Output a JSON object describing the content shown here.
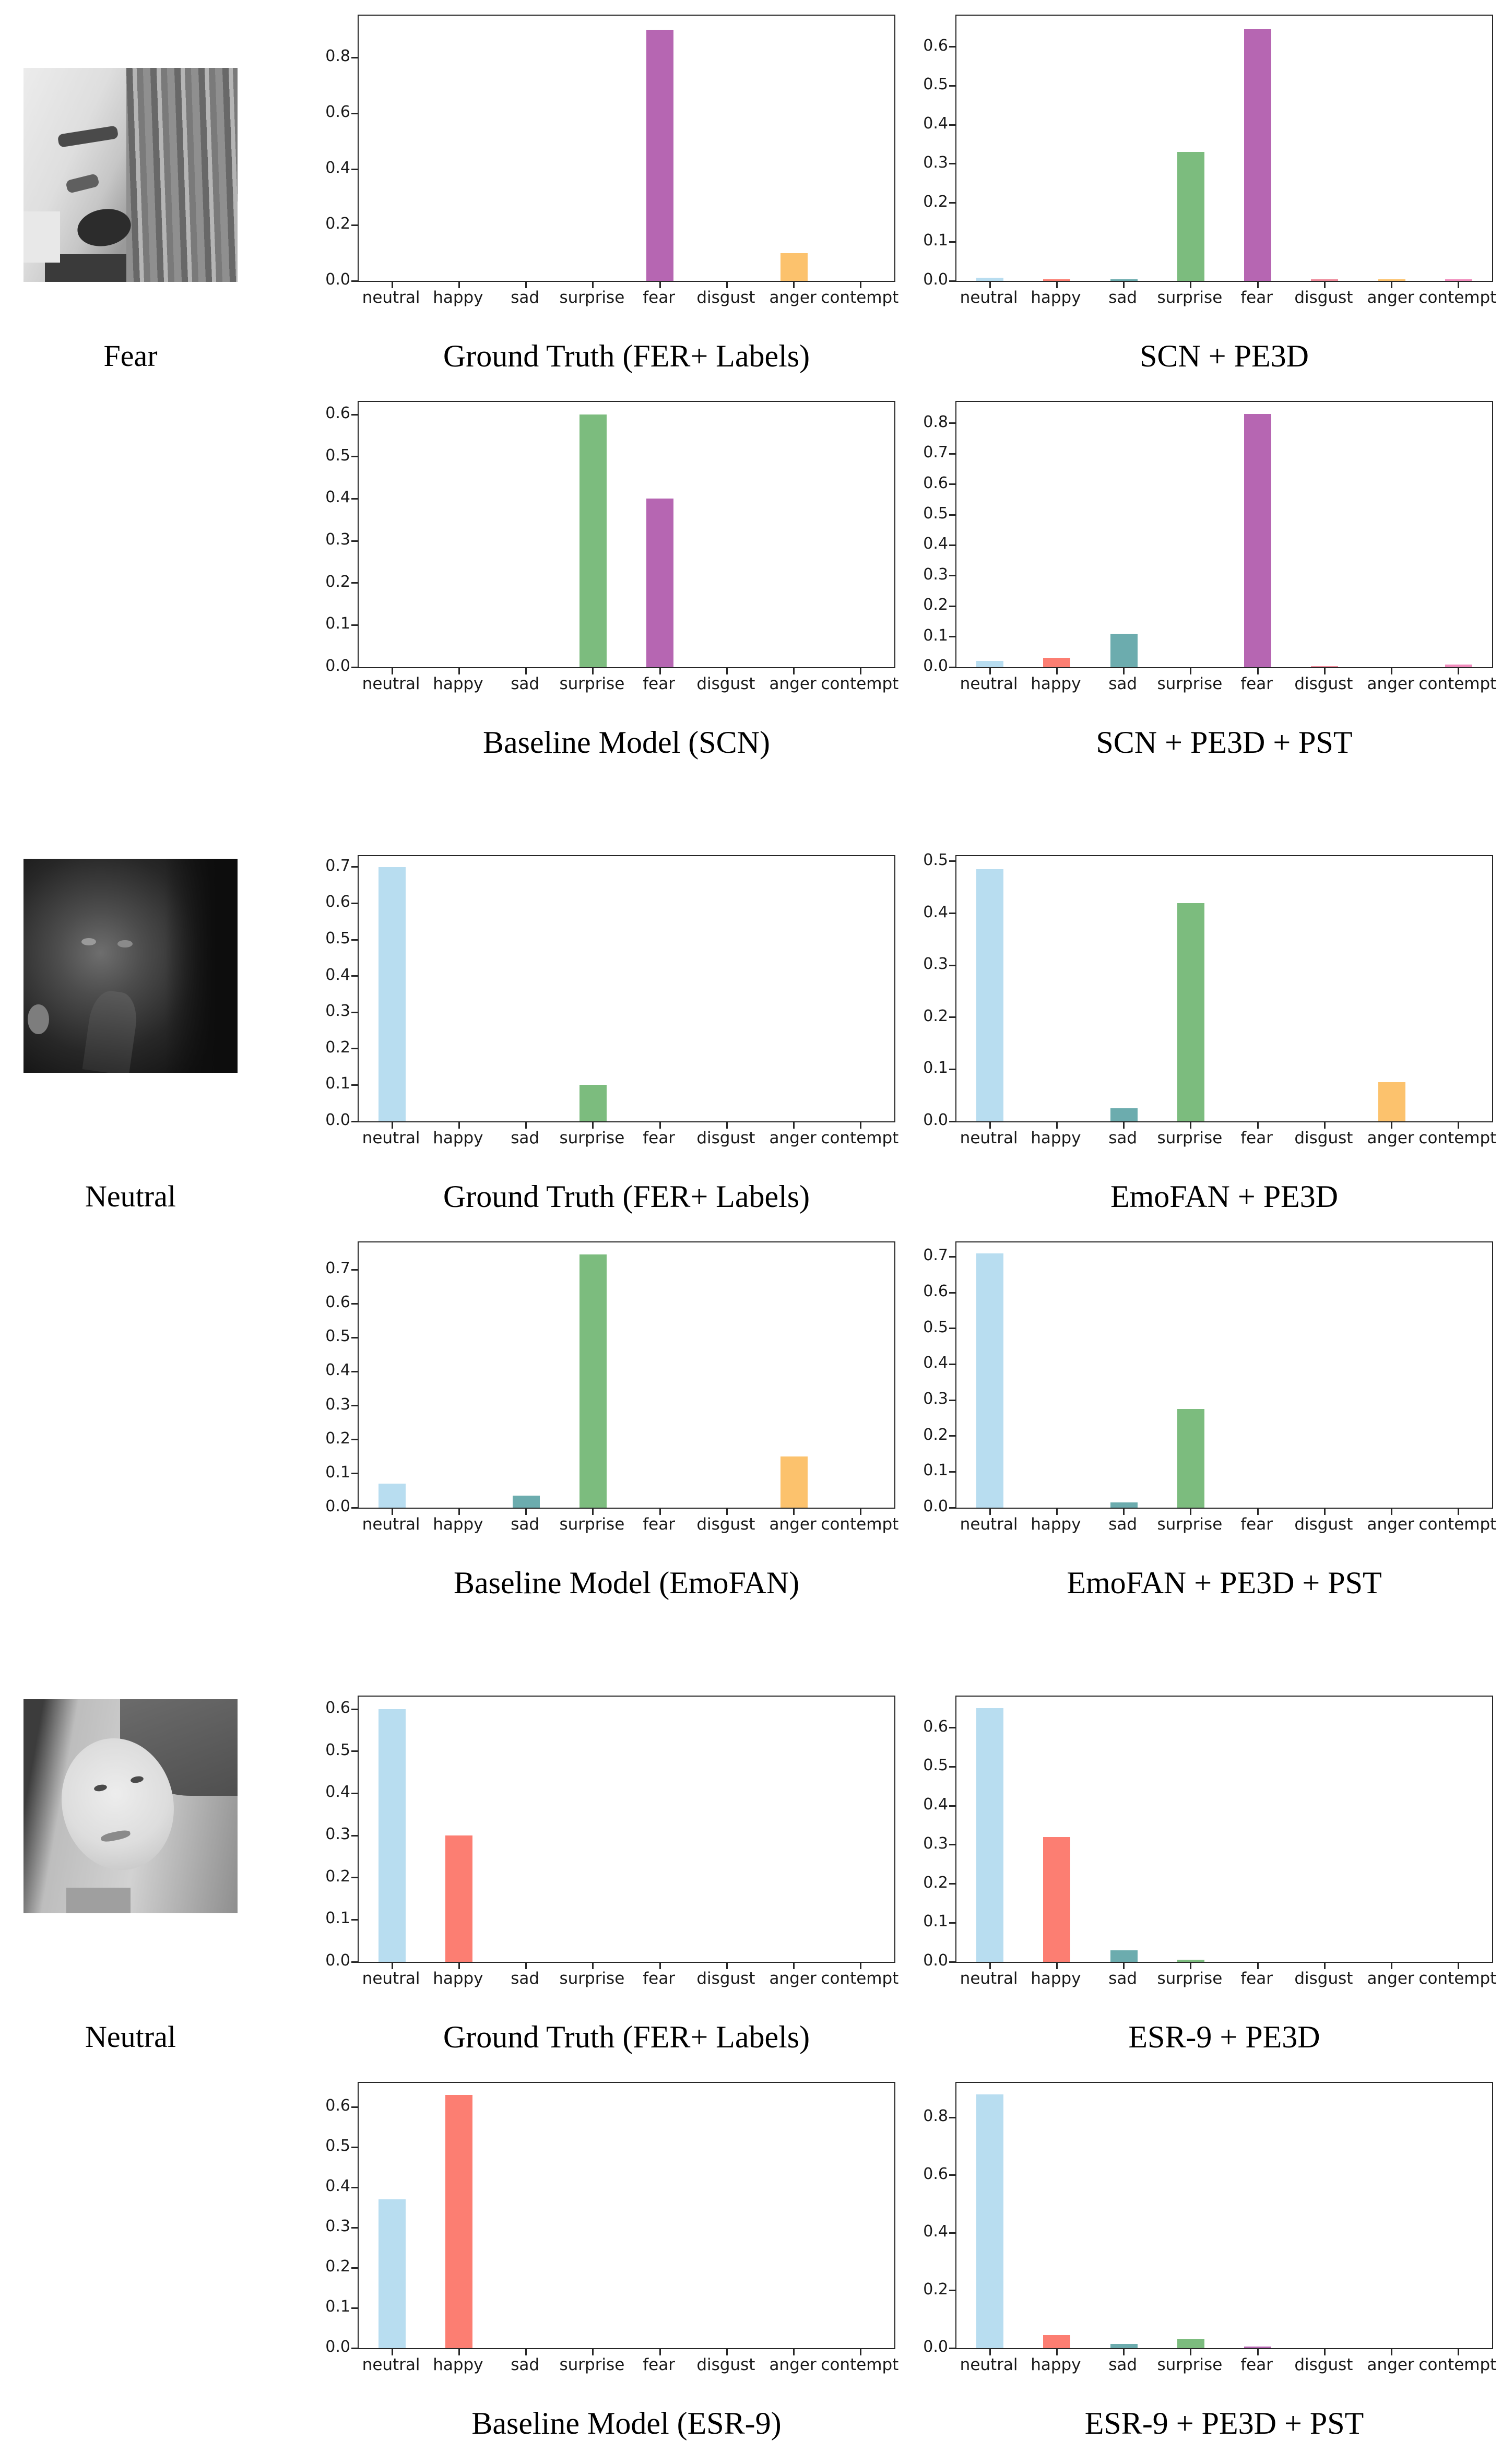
{
  "chart_data": {
    "type": "bar",
    "categories": [
      "neutral",
      "happy",
      "sad",
      "surprise",
      "fear",
      "disgust",
      "anger",
      "contempt"
    ],
    "bar_colors": {
      "neutral": "#b8ddf0",
      "happy": "#fc7e72",
      "sad": "#6cacae",
      "surprise": "#7cbc7e",
      "fear": "#b666b2",
      "disgust": "#ee8a9a",
      "anger": "#fcc26d",
      "contempt": "#f18cbd"
    },
    "grid": false,
    "legend": "none",
    "xlabel": "",
    "ylabel": "",
    "groups": [
      {
        "face_label": "Fear",
        "charts": [
          {
            "title": "Ground Truth (FER+ Labels)",
            "yticks": [
              0.0,
              0.2,
              0.4,
              0.6,
              0.8
            ],
            "ylim": [
              0,
              0.95
            ],
            "values": [
              0,
              0,
              0,
              0,
              0.9,
              0,
              0.1,
              0
            ]
          },
          {
            "title": "SCN + PE3D",
            "yticks": [
              0.0,
              0.1,
              0.2,
              0.3,
              0.4,
              0.5,
              0.6
            ],
            "ylim": [
              0,
              0.68
            ],
            "values": [
              0.008,
              0.004,
              0.004,
              0.33,
              0.645,
              0.004,
              0.004,
              0.004
            ]
          },
          {
            "title": "Baseline Model (SCN)",
            "yticks": [
              0.0,
              0.1,
              0.2,
              0.3,
              0.4,
              0.5,
              0.6
            ],
            "ylim": [
              0,
              0.63
            ],
            "values": [
              0,
              0,
              0,
              0.6,
              0.4,
              0,
              0,
              0
            ]
          },
          {
            "title": "SCN + PE3D + PST",
            "yticks": [
              0.0,
              0.1,
              0.2,
              0.3,
              0.4,
              0.5,
              0.6,
              0.7,
              0.8
            ],
            "ylim": [
              0,
              0.87
            ],
            "values": [
              0.02,
              0.03,
              0.11,
              0,
              0.83,
              0.004,
              0,
              0.008
            ]
          }
        ]
      },
      {
        "face_label": "Neutral",
        "charts": [
          {
            "title": "Ground Truth (FER+ Labels)",
            "yticks": [
              0.0,
              0.1,
              0.2,
              0.3,
              0.4,
              0.5,
              0.6,
              0.7
            ],
            "ylim": [
              0,
              0.73
            ],
            "values": [
              0.7,
              0,
              0,
              0.1,
              0,
              0,
              0,
              0
            ]
          },
          {
            "title": "EmoFAN + PE3D",
            "yticks": [
              0.0,
              0.1,
              0.2,
              0.3,
              0.4,
              0.5
            ],
            "ylim": [
              0,
              0.51
            ],
            "values": [
              0.485,
              0,
              0.025,
              0.42,
              0,
              0,
              0.075,
              0
            ]
          },
          {
            "title": "Baseline Model (EmoFAN)",
            "yticks": [
              0.0,
              0.1,
              0.2,
              0.3,
              0.4,
              0.5,
              0.6,
              0.7
            ],
            "ylim": [
              0,
              0.78
            ],
            "values": [
              0.07,
              0,
              0.035,
              0.745,
              0,
              0,
              0.15,
              0
            ]
          },
          {
            "title": "EmoFAN + PE3D + PST",
            "yticks": [
              0.0,
              0.1,
              0.2,
              0.3,
              0.4,
              0.5,
              0.6,
              0.7
            ],
            "ylim": [
              0,
              0.74
            ],
            "values": [
              0.71,
              0,
              0.015,
              0.275,
              0,
              0,
              0,
              0
            ]
          }
        ]
      },
      {
        "face_label": "Neutral",
        "charts": [
          {
            "title": "Ground Truth (FER+ Labels)",
            "yticks": [
              0.0,
              0.1,
              0.2,
              0.3,
              0.4,
              0.5,
              0.6
            ],
            "ylim": [
              0,
              0.63
            ],
            "values": [
              0.6,
              0.3,
              0,
              0,
              0,
              0,
              0,
              0
            ]
          },
          {
            "title": "ESR-9 + PE3D",
            "yticks": [
              0.0,
              0.1,
              0.2,
              0.3,
              0.4,
              0.5,
              0.6
            ],
            "ylim": [
              0,
              0.68
            ],
            "values": [
              0.65,
              0.32,
              0.03,
              0.005,
              0,
              0,
              0,
              0
            ]
          },
          {
            "title": "Baseline Model (ESR-9)",
            "yticks": [
              0.0,
              0.1,
              0.2,
              0.3,
              0.4,
              0.5,
              0.6
            ],
            "ylim": [
              0,
              0.66
            ],
            "values": [
              0.37,
              0.63,
              0,
              0,
              0,
              0,
              0,
              0
            ]
          },
          {
            "title": "ESR-9 + PE3D + PST",
            "yticks": [
              0.0,
              0.2,
              0.4,
              0.6,
              0.8
            ],
            "ylim": [
              0,
              0.92
            ],
            "values": [
              0.88,
              0.045,
              0.015,
              0.03,
              0.005,
              0,
              0,
              0
            ]
          }
        ]
      }
    ]
  }
}
